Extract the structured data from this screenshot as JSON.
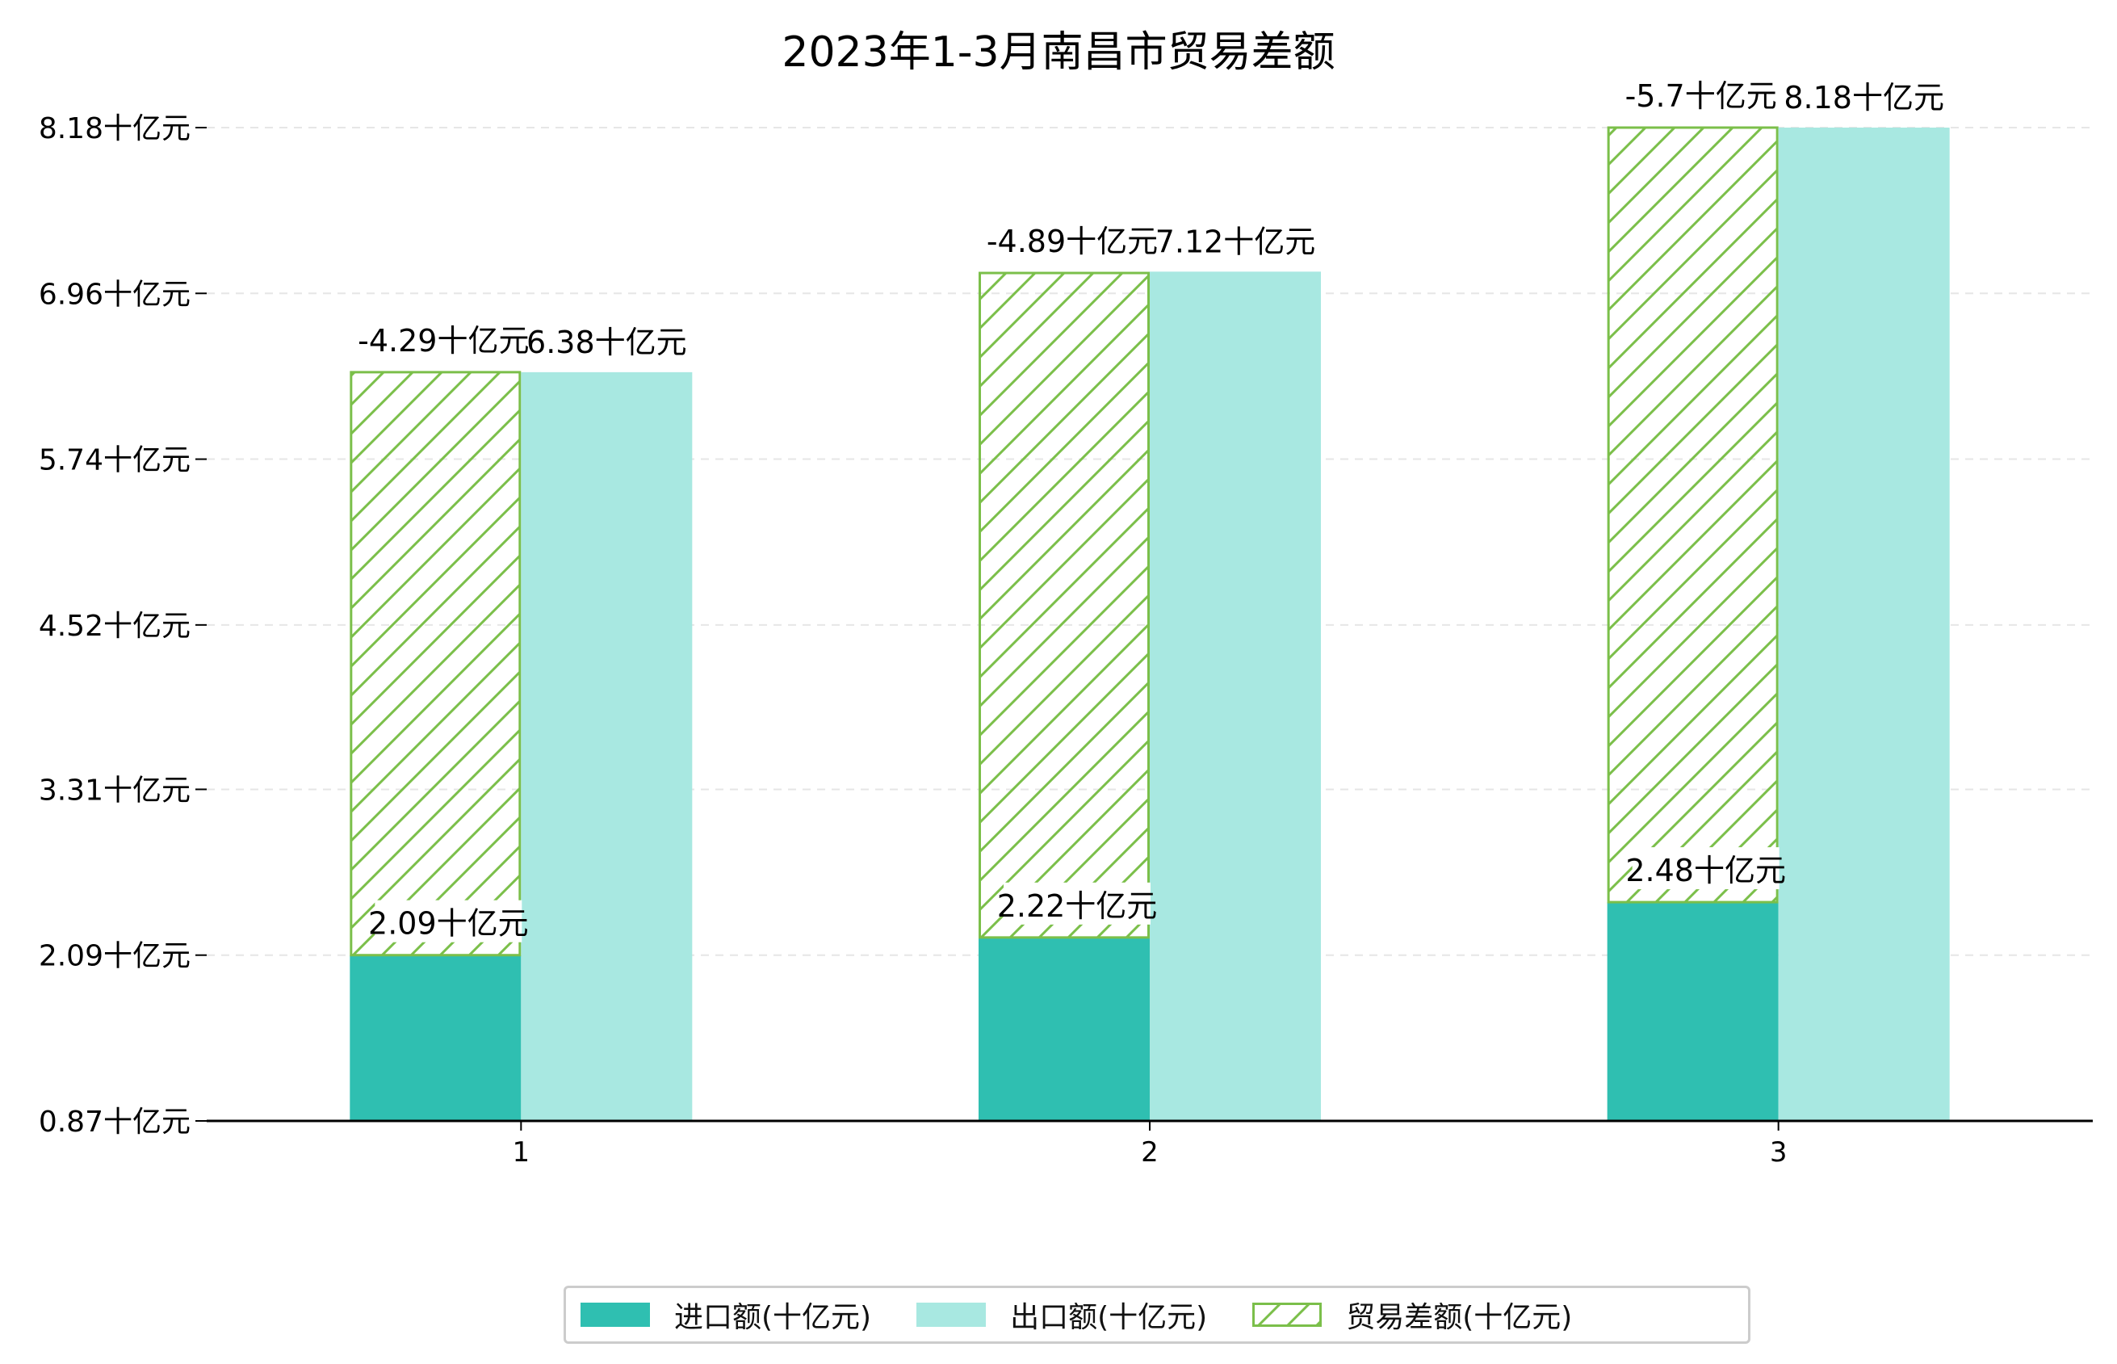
{
  "chart_data": {
    "type": "bar",
    "title": "2023年1-3月南昌市贸易差额",
    "categories": [
      "1",
      "2",
      "3"
    ],
    "series": [
      {
        "name": "进口额(十亿元)",
        "values": [
          2.09,
          2.22,
          2.48
        ],
        "labels": [
          "2.09十亿元",
          "2.22十亿元",
          "2.48十亿元"
        ],
        "color": "#2fbfb1"
      },
      {
        "name": "出口额(十亿元)",
        "values": [
          6.38,
          7.12,
          8.18
        ],
        "labels": [
          "6.38十亿元",
          "7.12十亿元",
          "8.18十亿元"
        ],
        "color": "#a8e8e1"
      },
      {
        "name": "贸易差额(十亿元)",
        "values": [
          -4.29,
          -4.89,
          -5.7
        ],
        "labels": [
          "-4.29十亿元",
          "-4.89十亿元",
          "-5.7十亿元"
        ],
        "color": "#7bbf4a",
        "style": "hatched",
        "stacked_on": "进口额(十亿元)"
      }
    ],
    "yticks": [
      "0.87十亿元",
      "2.09十亿元",
      "3.31十亿元",
      "4.52十亿元",
      "5.74十亿元",
      "6.96十亿元",
      "8.18十亿元"
    ],
    "ytick_values": [
      0.87,
      2.09,
      3.31,
      4.52,
      5.74,
      6.96,
      8.18
    ],
    "ylim": [
      0.87,
      8.18
    ],
    "grid": true,
    "legend_position": "bottom-center"
  }
}
